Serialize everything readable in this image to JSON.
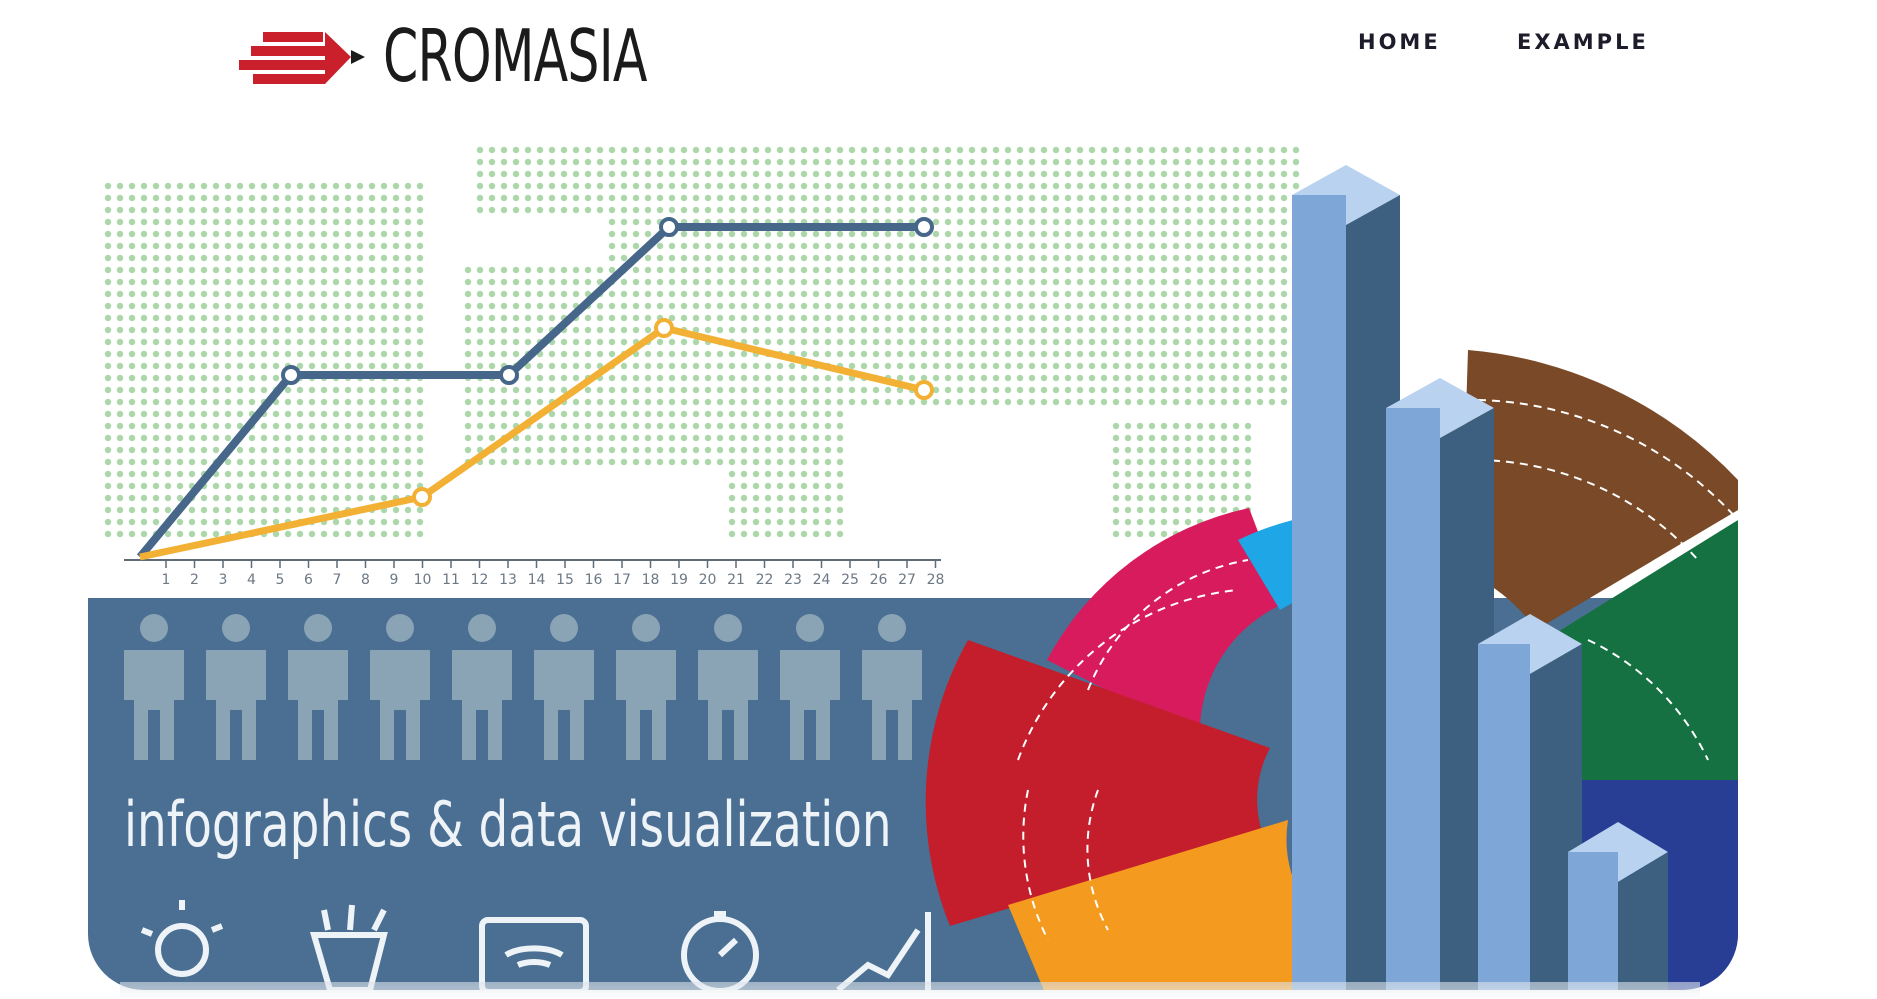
{
  "brand": {
    "name": "CROMASIA"
  },
  "nav": {
    "items": [
      "HOME",
      "EXAMPLE"
    ]
  },
  "hero": {
    "headline": "infographics & data visualization",
    "axis_ticks": [
      "1",
      "2",
      "3",
      "4",
      "5",
      "6",
      "7",
      "8",
      "9",
      "10",
      "11",
      "12",
      "13",
      "14",
      "15",
      "16",
      "17",
      "18",
      "19",
      "20",
      "21",
      "22",
      "23",
      "24",
      "25",
      "26",
      "27",
      "28"
    ],
    "colors": {
      "panel": "#4a6f93",
      "line_blue": "#46678a",
      "line_orange": "#f2b134",
      "dots": "#9ed09b",
      "bar_light": "#7ea6d6",
      "bar_dark": "#3d5f80"
    },
    "icons": [
      "lightbulb-icon",
      "pencil-cup-icon",
      "tablet-icon",
      "stopwatch-icon",
      "growth-chart-icon"
    ]
  }
}
